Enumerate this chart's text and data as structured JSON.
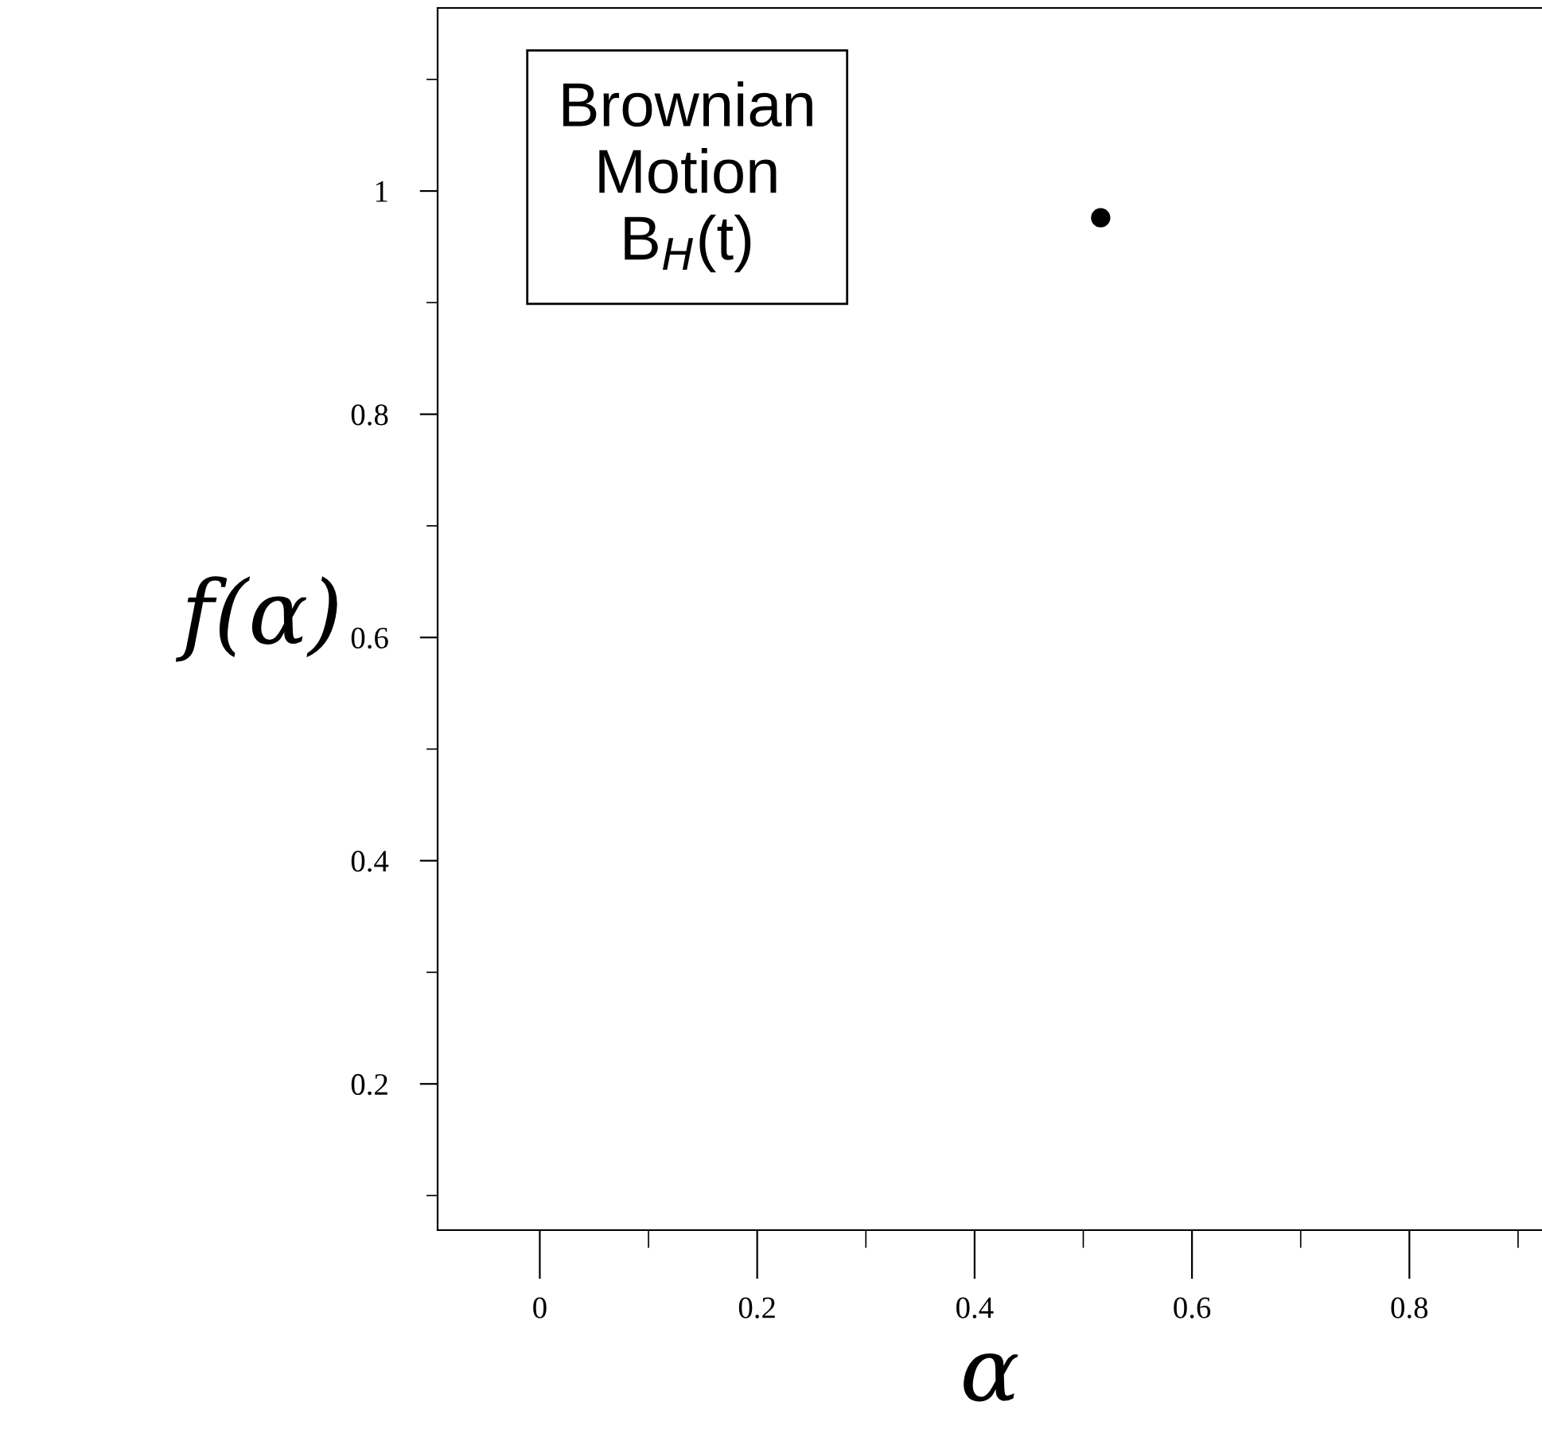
{
  "chart_data": {
    "type": "scatter",
    "xlabel": "α",
    "ylabel": "f(α)",
    "x": [
      0.516
    ],
    "series": [
      {
        "color": "#000000",
        "values": [
          0.976
        ]
      }
    ],
    "marker": "circle",
    "xlim": [
      -0.094,
      0.922
    ],
    "ylim": [
      0.069,
      1.164
    ],
    "xticks": [
      0,
      {
        "value": 0.1,
        "label": null
      },
      0.2,
      {
        "value": 0.3,
        "label": null
      },
      0.4,
      {
        "value": 0.5,
        "label": null
      },
      0.6,
      {
        "value": 0.7,
        "label": null
      },
      0.8,
      {
        "value": 0.9,
        "label": null
      }
    ],
    "yticks": [
      {
        "value": 0.1,
        "label": null
      },
      0.2,
      {
        "value": 0.3,
        "label": null
      },
      0.4,
      {
        "value": 0.5,
        "label": null
      },
      0.6,
      {
        "value": 0.7,
        "label": null
      },
      0.8,
      {
        "value": 0.9,
        "label": null
      },
      1,
      {
        "value": 1.1,
        "label": null
      }
    ],
    "annotations": [
      "Brownian\nMotion\nB$_{H}$(t)"
    ],
    "grid": false,
    "legend": false
  }
}
